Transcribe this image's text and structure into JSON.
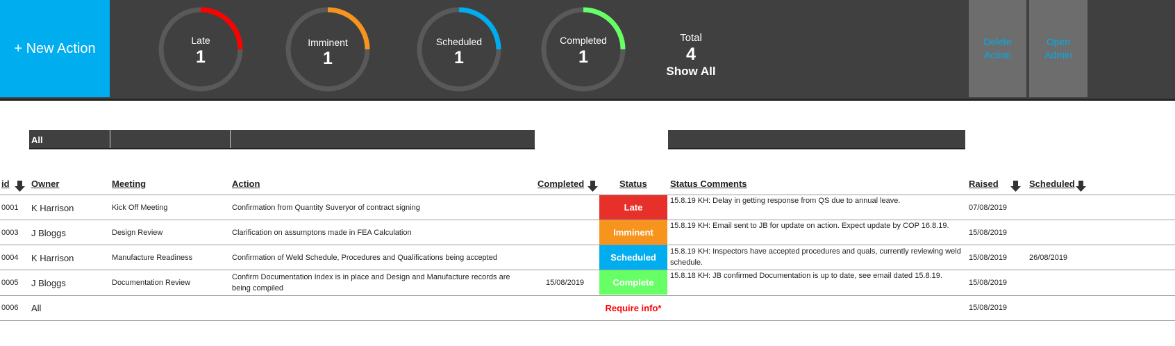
{
  "toolbar": {
    "new_action_label": "+ New Action",
    "delete_action_label": "Delete Action",
    "open_admin_label": "Open Admin"
  },
  "summary": {
    "gauges": [
      {
        "label": "Late",
        "count": "1",
        "color": "#ff0000",
        "fraction": 0.25
      },
      {
        "label": "Imminent",
        "count": "1",
        "color": "#f7941d",
        "fraction": 0.25
      },
      {
        "label": "Scheduled",
        "count": "1",
        "color": "#00adef",
        "fraction": 0.25
      },
      {
        "label": "Completed",
        "count": "1",
        "color": "#66ff66",
        "fraction": 0.25
      }
    ],
    "total_label": "Total",
    "total_count": "4",
    "show_all_label": "Show All"
  },
  "filters": {
    "owner_filter": "All"
  },
  "columns": {
    "id": "id",
    "owner": "Owner",
    "meeting": "Meeting",
    "action": "Action",
    "completed": "Completed",
    "status": "Status",
    "status_comments": "Status Comments",
    "raised": "Raised",
    "scheduled": "Scheduled"
  },
  "rows": [
    {
      "id": "0001",
      "owner": "K Harrison",
      "meeting": "Kick Off Meeting",
      "action": "Confirmation from Quantity Suveryor of contract signing",
      "completed": "",
      "status": "Late",
      "status_color": "#e8302a",
      "comment": "15.8.19 KH: Delay in getting response from QS due to annual leave.",
      "raised": "07/08/2019",
      "scheduled": ""
    },
    {
      "id": "0003",
      "owner": "J Bloggs",
      "meeting": "Design Review",
      "action": "Clarification on assumptons made in FEA Calculation",
      "completed": "",
      "status": "Imminent",
      "status_color": "#f7941d",
      "comment": "15.8.19 KH: Email sent to JB for update on action.  Expect update by COP 16.8.19.",
      "raised": "15/08/2019",
      "scheduled": ""
    },
    {
      "id": "0004",
      "owner": "K Harrison",
      "meeting": "Manufacture Readiness",
      "action": "Confirmation of Weld Schedule, Procedures and Qualifications being accepted",
      "completed": "",
      "status": "Scheduled",
      "status_color": "#00adef",
      "comment": "15.8.19 KH: Inspectors have accepted procedures and quals, currently reviewing weld schedule.",
      "raised": "15/08/2019",
      "scheduled": "26/08/2019"
    },
    {
      "id": "0005",
      "owner": "J Bloggs",
      "meeting": "Documentation Review",
      "action": "Confirm Documentation Index is in place and Design and Manufacture records are being compiled",
      "completed": "15/08/2019",
      "status": "Complete",
      "status_color": "#66ff66",
      "comment": "15.8.18 KH: JB confirmed Documentation is up to date, see email dated 15.8.19.",
      "raised": "15/08/2019",
      "scheduled": ""
    },
    {
      "id": "0006",
      "owner": "All",
      "meeting": "",
      "action": "",
      "completed": "",
      "status": "Require info*",
      "status_color": "#ff0000",
      "comment": "",
      "raised": "15/08/2019",
      "scheduled": ""
    }
  ]
}
